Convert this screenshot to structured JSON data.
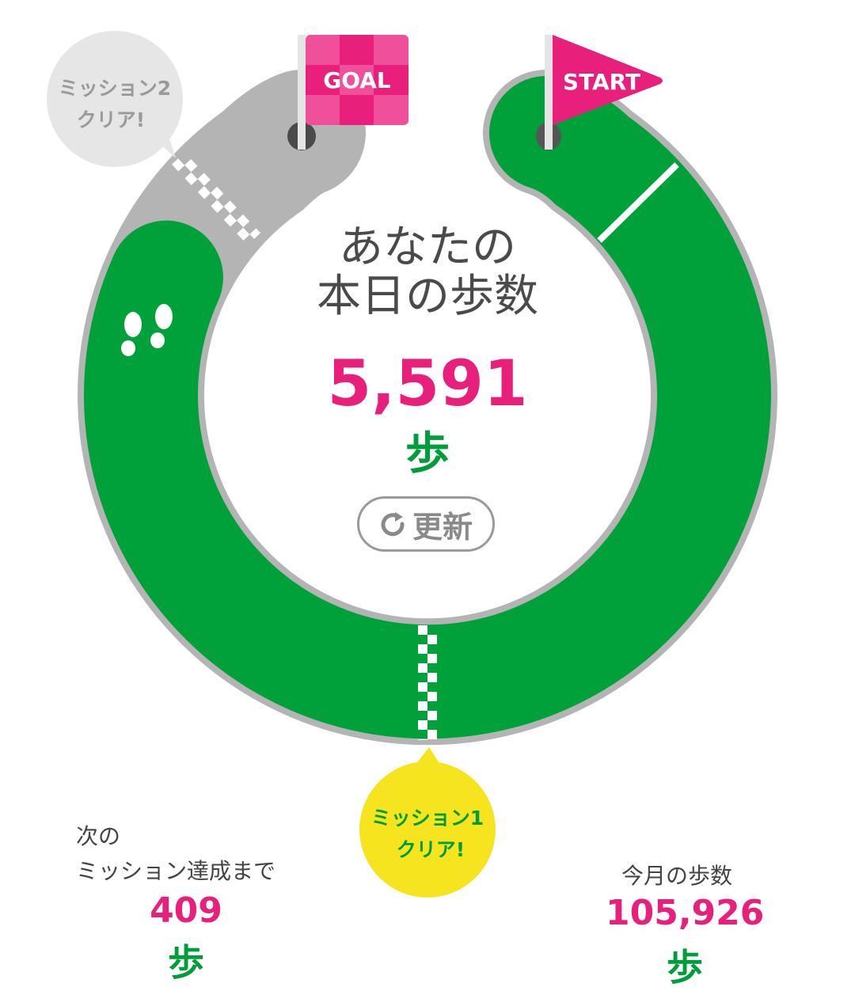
{
  "center": {
    "title_line1": "あなたの",
    "title_line2": "本日の歩数",
    "today_steps": "5,591",
    "unit": "歩",
    "refresh_label": "更新"
  },
  "flags": {
    "start": "START",
    "goal": "GOAL"
  },
  "missions": {
    "mission1_line1": "ミッション1",
    "mission1_line2": "クリア!",
    "mission2_line1": "ミッション2",
    "mission2_line2": "クリア!"
  },
  "next_mission": {
    "label_line1": "次の",
    "label_line2": "ミッション達成まで",
    "steps": "409",
    "unit": "歩"
  },
  "monthly": {
    "label": "今月の歩数",
    "steps": "105,926",
    "unit": "歩"
  },
  "track": {
    "progress_fraction": 0.87
  },
  "colors": {
    "pink": "#e8207b",
    "green": "#00a13a",
    "gray": "#b4b4b4",
    "yellow": "#f6e41f"
  }
}
